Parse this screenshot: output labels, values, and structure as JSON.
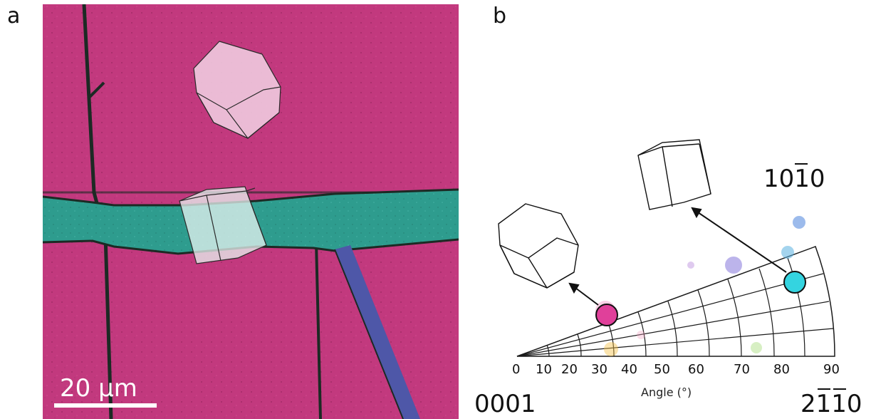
{
  "panels": {
    "a_letter": "a",
    "b_letter": "b"
  },
  "panel_a": {
    "scale_bar_label": "20 μm",
    "colors": {
      "matrix": "#c2397e",
      "twin_band": "#2e9c8e",
      "thin_band": "#4e57a8",
      "grain_boundary": "#1c2a24"
    }
  },
  "panel_b": {
    "axis_label": "Angle (°)",
    "corner_left": "0001",
    "corner_right": "2110",
    "corner_top": "1010",
    "tick_labels": [
      "0",
      "10",
      "20",
      "30",
      "40",
      "50",
      "60",
      "70",
      "80",
      "90"
    ],
    "colors": {
      "circle_low": "#e0409a",
      "circle_high": "#34d4e0"
    }
  }
}
